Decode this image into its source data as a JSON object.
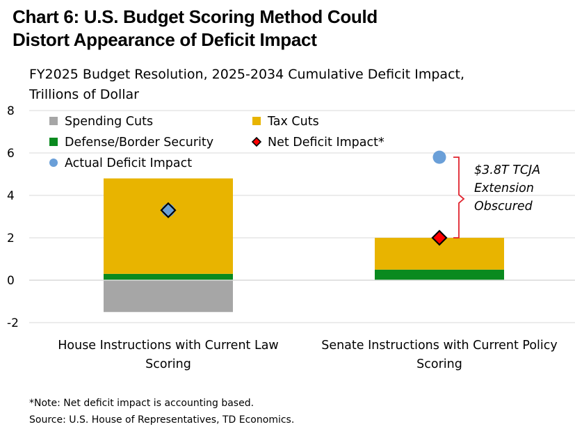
{
  "header": {
    "title_line1": "Chart 6: U.S. Budget Scoring Method Could",
    "title_line2": "Distort Appearance of Deficit Impact",
    "subtitle_line1": "FY2025 Budget Resolution, 2025-2034 Cumulative Deficit Impact,",
    "subtitle_line2": "Trillions of Dollar"
  },
  "colors": {
    "spending_cuts": "#a6a6a6",
    "tax_cuts": "#e8b400",
    "defense": "#0a8a1f",
    "net_impact": "#ff0000",
    "actual_impact": "#6a9fd8",
    "bracket": "#e0232e",
    "grid": "#d9d9d9"
  },
  "chart_data": {
    "type": "bar",
    "stacked": true,
    "categories": [
      [
        "House Instructions with Current Law",
        "Scoring"
      ],
      [
        "Senate Instructions with Current Policy",
        "Scoring"
      ]
    ],
    "series": [
      {
        "name": "Spending Cuts",
        "values": [
          -1.5,
          0.0
        ]
      },
      {
        "name": "Defense/Border Security",
        "values": [
          0.3,
          0.5
        ]
      },
      {
        "name": "Tax Cuts",
        "values": [
          4.5,
          1.5
        ]
      }
    ],
    "markers": [
      {
        "name": "Net Deficit Impact*",
        "shape": "diamond",
        "values": [
          3.3,
          2.0
        ]
      },
      {
        "name": "Actual Deficit Impact",
        "shape": "circle",
        "values": [
          3.3,
          5.8
        ]
      }
    ],
    "legend": [
      "Spending Cuts",
      "Tax Cuts",
      "Defense/Border Security",
      "Net Deficit Impact*",
      "Actual Deficit Impact"
    ],
    "legend_position": "top-left",
    "annotation": {
      "lines": [
        "$3.8T TCJA",
        "Extension",
        "Obscured"
      ],
      "category_index": 1,
      "from": 2.0,
      "to": 5.8
    },
    "ylim": [
      -2,
      8
    ],
    "yticks": [
      -2,
      0,
      2,
      4,
      6,
      8
    ],
    "grid": true,
    "xlabel": "",
    "ylabel": ""
  },
  "footer": {
    "note": "*Note: Net deficit impact  is accounting based.",
    "source": "Source: U.S. House of Representatives, TD Economics."
  }
}
